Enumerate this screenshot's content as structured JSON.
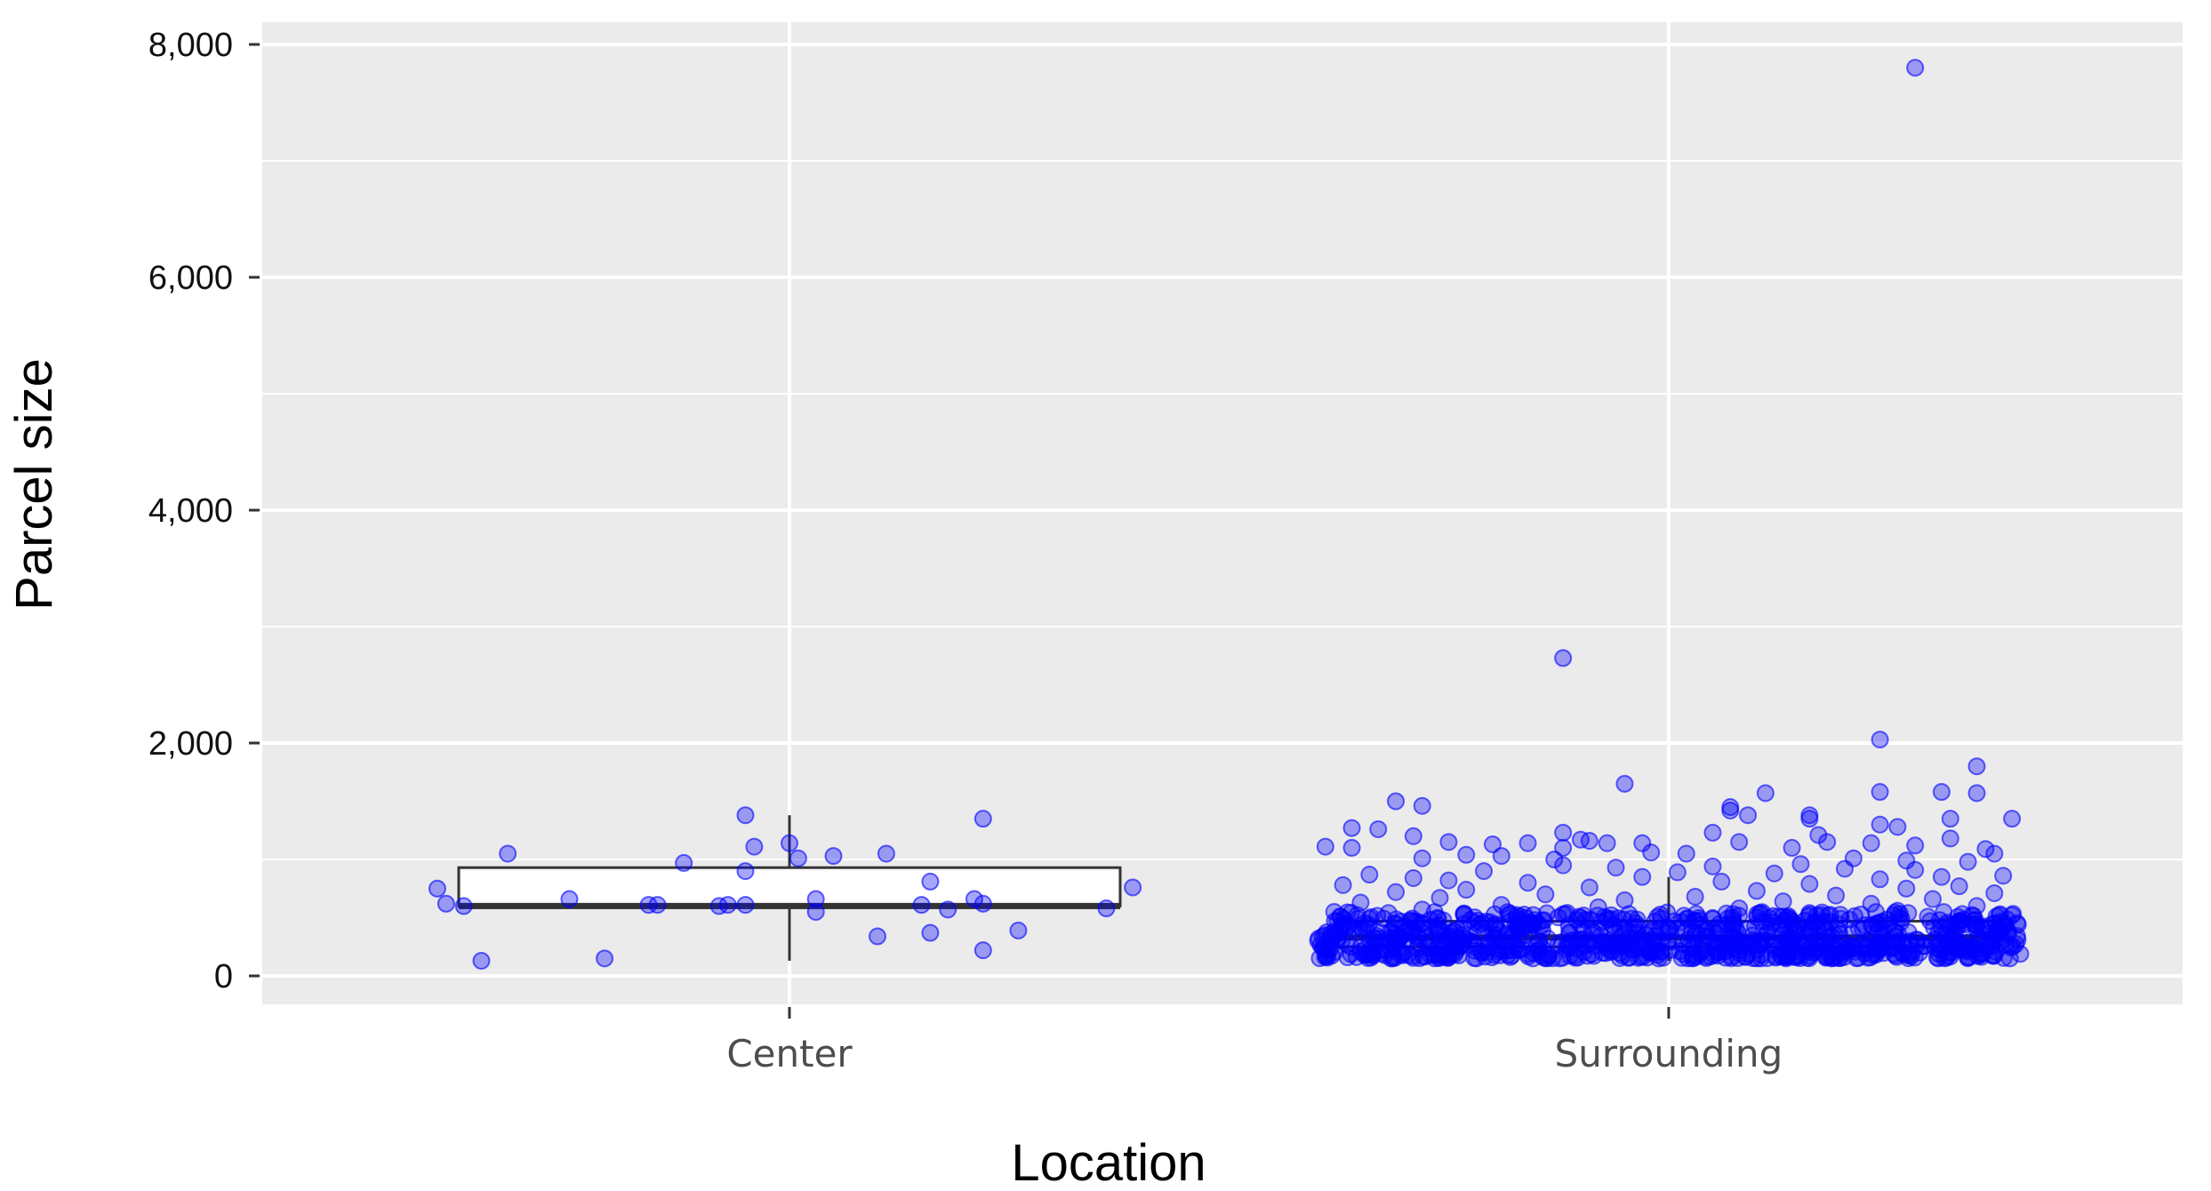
{
  "chart_data": {
    "type": "box-jitter",
    "xlabel": "Location",
    "ylabel": "Parcel size",
    "ylim": [
      -250,
      8200
    ],
    "yticks": [
      0,
      2000,
      4000,
      6000,
      8000
    ],
    "ytick_labels": [
      "0",
      "2,000",
      "4,000",
      "6,000",
      "8,000"
    ],
    "categories": [
      "Center",
      "Surrounding"
    ],
    "colors": {
      "panel_background": "#ebebeb",
      "gridline": "#ffffff",
      "point": "#0000ff",
      "box_outline": "#333333",
      "box_fill": "#ffffff"
    },
    "grid": true,
    "legend": "none",
    "boxes": [
      {
        "category": "Center",
        "q1": 600,
        "median": 600,
        "q3": 930,
        "lower_whisker": 130,
        "upper_whisker": 1380
      },
      {
        "category": "Surrounding",
        "q1": 250,
        "median": 330,
        "q3": 470,
        "lower_whisker": 130,
        "upper_whisker": 850
      }
    ],
    "series": [
      {
        "category": "Center",
        "points": [
          {
            "x": -0.4,
            "y": 750
          },
          {
            "x": -0.39,
            "y": 620
          },
          {
            "x": -0.37,
            "y": 600
          },
          {
            "x": -0.35,
            "y": 130
          },
          {
            "x": -0.32,
            "y": 1050
          },
          {
            "x": -0.25,
            "y": 660
          },
          {
            "x": -0.21,
            "y": 150
          },
          {
            "x": -0.16,
            "y": 610
          },
          {
            "x": -0.15,
            "y": 610
          },
          {
            "x": -0.12,
            "y": 970
          },
          {
            "x": -0.08,
            "y": 600
          },
          {
            "x": -0.07,
            "y": 610
          },
          {
            "x": -0.05,
            "y": 1380
          },
          {
            "x": -0.05,
            "y": 900
          },
          {
            "x": -0.05,
            "y": 610
          },
          {
            "x": -0.04,
            "y": 1110
          },
          {
            "x": 0.0,
            "y": 1140
          },
          {
            "x": 0.01,
            "y": 1010
          },
          {
            "x": 0.03,
            "y": 660
          },
          {
            "x": 0.03,
            "y": 550
          },
          {
            "x": 0.05,
            "y": 1030
          },
          {
            "x": 0.1,
            "y": 340
          },
          {
            "x": 0.11,
            "y": 1050
          },
          {
            "x": 0.15,
            "y": 610
          },
          {
            "x": 0.16,
            "y": 810
          },
          {
            "x": 0.16,
            "y": 370
          },
          {
            "x": 0.18,
            "y": 570
          },
          {
            "x": 0.21,
            "y": 660
          },
          {
            "x": 0.22,
            "y": 220
          },
          {
            "x": 0.22,
            "y": 1350
          },
          {
            "x": 0.22,
            "y": 620
          },
          {
            "x": 0.26,
            "y": 390
          },
          {
            "x": 0.36,
            "y": 580
          },
          {
            "x": 0.39,
            "y": 760
          }
        ]
      },
      {
        "category": "Surrounding",
        "points": [
          {
            "x": 0.28,
            "y": 7800
          },
          {
            "x": -0.12,
            "y": 2730
          },
          {
            "x": 0.24,
            "y": 2030
          },
          {
            "x": -0.05,
            "y": 1650
          },
          {
            "x": 0.35,
            "y": 1800
          },
          {
            "x": 0.24,
            "y": 1580
          },
          {
            "x": 0.31,
            "y": 1580
          },
          {
            "x": 0.35,
            "y": 1570
          },
          {
            "x": 0.11,
            "y": 1570
          },
          {
            "x": -0.31,
            "y": 1500
          },
          {
            "x": -0.28,
            "y": 1460
          },
          {
            "x": 0.07,
            "y": 1450
          },
          {
            "x": 0.07,
            "y": 1420
          },
          {
            "x": 0.09,
            "y": 1380
          },
          {
            "x": 0.16,
            "y": 1380
          },
          {
            "x": 0.16,
            "y": 1350
          },
          {
            "x": 0.32,
            "y": 1350
          },
          {
            "x": 0.39,
            "y": 1350
          },
          {
            "x": 0.24,
            "y": 1300
          },
          {
            "x": 0.26,
            "y": 1280
          },
          {
            "x": -0.36,
            "y": 1270
          },
          {
            "x": -0.33,
            "y": 1260
          },
          {
            "x": -0.12,
            "y": 1230
          },
          {
            "x": 0.05,
            "y": 1230
          },
          {
            "x": 0.17,
            "y": 1210
          },
          {
            "x": -0.29,
            "y": 1200
          },
          {
            "x": 0.32,
            "y": 1180
          },
          {
            "x": -0.1,
            "y": 1170
          },
          {
            "x": -0.09,
            "y": 1160
          },
          {
            "x": 0.18,
            "y": 1150
          },
          {
            "x": -0.25,
            "y": 1150
          },
          {
            "x": 0.08,
            "y": 1150
          },
          {
            "x": -0.16,
            "y": 1140
          },
          {
            "x": -0.07,
            "y": 1140
          },
          {
            "x": -0.03,
            "y": 1140
          },
          {
            "x": 0.23,
            "y": 1140
          },
          {
            "x": -0.2,
            "y": 1130
          },
          {
            "x": 0.28,
            "y": 1120
          },
          {
            "x": -0.39,
            "y": 1110
          },
          {
            "x": -0.36,
            "y": 1100
          },
          {
            "x": -0.12,
            "y": 1100
          },
          {
            "x": 0.14,
            "y": 1100
          },
          {
            "x": 0.36,
            "y": 1090
          },
          {
            "x": -0.02,
            "y": 1060
          },
          {
            "x": 0.02,
            "y": 1050
          },
          {
            "x": 0.37,
            "y": 1050
          },
          {
            "x": -0.23,
            "y": 1040
          },
          {
            "x": -0.19,
            "y": 1030
          },
          {
            "x": -0.28,
            "y": 1010
          },
          {
            "x": 0.21,
            "y": 1010
          },
          {
            "x": -0.13,
            "y": 1000
          },
          {
            "x": 0.27,
            "y": 990
          },
          {
            "x": 0.34,
            "y": 980
          },
          {
            "x": 0.15,
            "y": 960
          },
          {
            "x": -0.12,
            "y": 950
          },
          {
            "x": 0.05,
            "y": 940
          },
          {
            "x": -0.06,
            "y": 930
          },
          {
            "x": 0.2,
            "y": 920
          },
          {
            "x": 0.28,
            "y": 910
          },
          {
            "x": -0.21,
            "y": 900
          },
          {
            "x": 0.01,
            "y": 890
          },
          {
            "x": 0.12,
            "y": 880
          },
          {
            "x": -0.34,
            "y": 870
          },
          {
            "x": 0.38,
            "y": 860
          },
          {
            "x": -0.03,
            "y": 850
          },
          {
            "x": 0.31,
            "y": 850
          },
          {
            "x": -0.29,
            "y": 840
          },
          {
            "x": 0.24,
            "y": 830
          },
          {
            "x": -0.25,
            "y": 820
          },
          {
            "x": 0.06,
            "y": 810
          },
          {
            "x": -0.16,
            "y": 800
          },
          {
            "x": 0.16,
            "y": 790
          },
          {
            "x": -0.37,
            "y": 780
          },
          {
            "x": 0.33,
            "y": 770
          },
          {
            "x": -0.09,
            "y": 760
          },
          {
            "x": 0.27,
            "y": 750
          },
          {
            "x": -0.23,
            "y": 740
          },
          {
            "x": 0.1,
            "y": 730
          },
          {
            "x": -0.31,
            "y": 720
          },
          {
            "x": 0.37,
            "y": 710
          },
          {
            "x": -0.14,
            "y": 700
          },
          {
            "x": 0.19,
            "y": 690
          },
          {
            "x": 0.03,
            "y": 680
          },
          {
            "x": -0.26,
            "y": 670
          },
          {
            "x": 0.3,
            "y": 660
          },
          {
            "x": -0.05,
            "y": 650
          },
          {
            "x": 0.13,
            "y": 640
          },
          {
            "x": -0.35,
            "y": 630
          },
          {
            "x": 0.23,
            "y": 620
          },
          {
            "x": -0.19,
            "y": 610
          },
          {
            "x": 0.35,
            "y": 600
          },
          {
            "x": -0.08,
            "y": 590
          },
          {
            "x": 0.08,
            "y": 580
          },
          {
            "x": -0.28,
            "y": 570
          },
          {
            "x": 0.26,
            "y": 560
          },
          {
            "x": -0.38,
            "y": 550
          },
          {
            "x": 0.16,
            "y": 540
          },
          {
            "x": -0.12,
            "y": 530
          },
          {
            "x": 0.39,
            "y": 520
          }
        ]
      }
    ],
    "dense_band": {
      "category": "Surrounding",
      "approx_count": 900,
      "y_min": 150,
      "y_max": 550,
      "x_spread": 0.4
    }
  }
}
